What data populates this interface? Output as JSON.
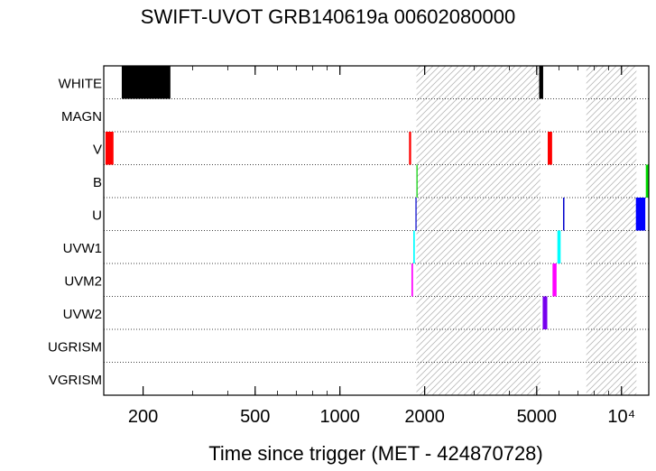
{
  "chart_data": {
    "type": "timeline",
    "title": "SWIFT-UVOT GRB140619a 00602080000",
    "xlabel": "Time since trigger (MET - 424870728)",
    "ylabel": "",
    "x_scale": "log",
    "xlim": [
      145,
      12500
    ],
    "x_ticks": [
      {
        "value": 200,
        "label": "200"
      },
      {
        "value": 500,
        "label": "500"
      },
      {
        "value": 1000,
        "label": "1000"
      },
      {
        "value": 2000,
        "label": "2000"
      },
      {
        "value": 5000,
        "label": "5000"
      },
      {
        "value": 10000,
        "label": "10⁴"
      }
    ],
    "filters": [
      "WHITE",
      "MAGN",
      "V",
      "B",
      "U",
      "UVW1",
      "UVM2",
      "UVW2",
      "UGRISM",
      "VGRISM"
    ],
    "gaps": [
      {
        "start": 1870,
        "end": 5150
      },
      {
        "start": 7500,
        "end": 11300
      }
    ],
    "exposures": [
      {
        "filter": "WHITE",
        "start": 168,
        "end": 250,
        "color": "#000000"
      },
      {
        "filter": "WHITE",
        "start": 5100,
        "end": 5270,
        "color": "#000000"
      },
      {
        "filter": "V",
        "start": 147,
        "end": 157,
        "color": "#ff0000"
      },
      {
        "filter": "V",
        "start": 1760,
        "end": 1790,
        "color": "#ff0000"
      },
      {
        "filter": "V",
        "start": 5470,
        "end": 5670,
        "color": "#ff0000"
      },
      {
        "filter": "B",
        "start": 1870,
        "end": 1880,
        "color": "#00cc00"
      },
      {
        "filter": "B",
        "start": 12200,
        "end": 12500,
        "color": "#00dd00"
      },
      {
        "filter": "U",
        "start": 1855,
        "end": 1868,
        "color": "#0000cc"
      },
      {
        "filter": "U",
        "start": 6200,
        "end": 6270,
        "color": "#0000cc"
      },
      {
        "filter": "U",
        "start": 11250,
        "end": 12150,
        "color": "#0000ff"
      },
      {
        "filter": "UVW1",
        "start": 1822,
        "end": 1845,
        "color": "#00ffff"
      },
      {
        "filter": "UVW1",
        "start": 5920,
        "end": 6080,
        "color": "#00ffff"
      },
      {
        "filter": "UVM2",
        "start": 1795,
        "end": 1818,
        "color": "#ff00ff"
      },
      {
        "filter": "UVM2",
        "start": 5690,
        "end": 5880,
        "color": "#ff00ff"
      },
      {
        "filter": "UVW2",
        "start": 5250,
        "end": 5450,
        "color": "#7700ee"
      }
    ]
  }
}
